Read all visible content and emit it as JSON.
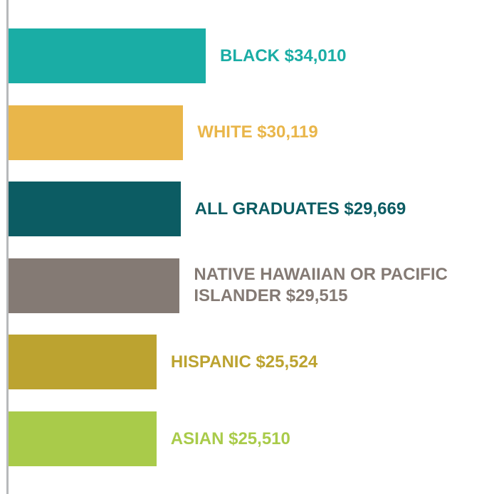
{
  "chart_data": {
    "type": "bar",
    "orientation": "horizontal",
    "categories": [
      "BLACK",
      "WHITE",
      "ALL GRADUATES",
      "NATIVE HAWAIIAN OR PACIFIC ISLANDER",
      "HISPANIC",
      "ASIAN"
    ],
    "values": [
      34010,
      30119,
      29669,
      29515,
      25524,
      25510
    ],
    "value_labels": [
      "$34,010",
      "$30,119",
      "$29,669",
      "$29,515",
      "$25,524",
      "$25,510"
    ],
    "colors": [
      "#1aada5",
      "#e9b64a",
      "#0c5c63",
      "#847a74",
      "#bca330",
      "#a9cb4a"
    ]
  }
}
